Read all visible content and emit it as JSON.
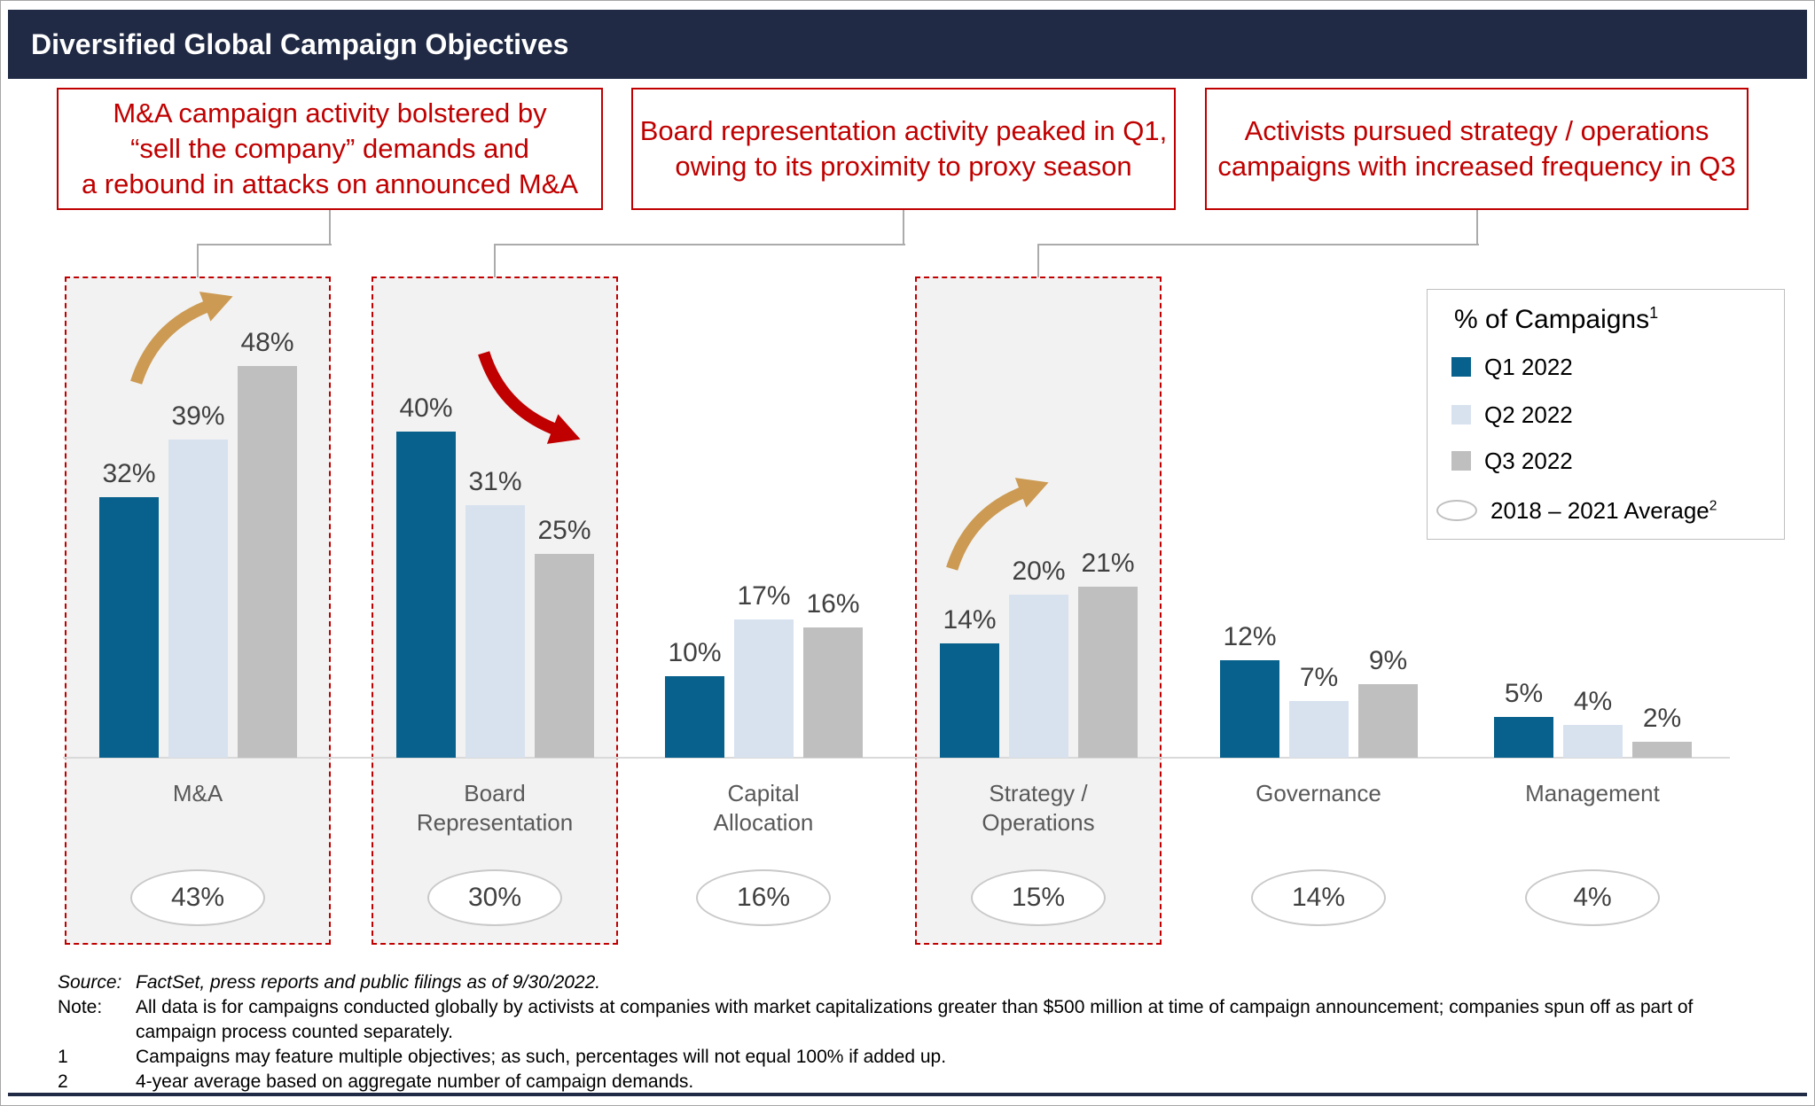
{
  "header": {
    "title": "Diversified Global Campaign Objectives"
  },
  "callouts": [
    {
      "text": "M&A campaign activity bolstered by\n“sell the company” demands and\na rebound in attacks on announced M&A"
    },
    {
      "text": "Board representation activity peaked in Q1,\nowing to its proximity to proxy season"
    },
    {
      "text": "Activists pursued strategy / operations\ncampaigns with increased frequency in Q3"
    }
  ],
  "legend": {
    "title": "% of Campaigns",
    "title_sup": "1",
    "items": [
      {
        "label": "Q1 2022",
        "color": "#08618c"
      },
      {
        "label": "Q2 2022",
        "color": "#d8e2ef"
      },
      {
        "label": "Q3 2022",
        "color": "#bfbfbf"
      }
    ],
    "average_item": {
      "label": "2018 – 2021 Average",
      "sup": "2"
    }
  },
  "chart_data": {
    "type": "bar",
    "title": "% of Campaigns",
    "categories": [
      "M&A",
      "Board Representation",
      "Capital Allocation",
      "Strategy / Operations",
      "Governance",
      "Management"
    ],
    "series": [
      {
        "name": "Q1 2022",
        "color": "#08618c",
        "values": [
          32,
          40,
          10,
          14,
          12,
          5
        ]
      },
      {
        "name": "Q2 2022",
        "color": "#d8e2ef",
        "values": [
          39,
          31,
          17,
          20,
          7,
          4
        ]
      },
      {
        "name": "Q3 2022",
        "color": "#bfbfbf",
        "values": [
          48,
          25,
          16,
          21,
          9,
          2
        ]
      }
    ],
    "averages_2018_2021": [
      43,
      30,
      16,
      15,
      14,
      4
    ],
    "value_suffix": "%",
    "ylim": [
      0,
      50
    ],
    "grid": false,
    "legend_position": "top-right",
    "highlighted_categories": [
      "M&A",
      "Board Representation",
      "Strategy / Operations"
    ],
    "trend_arrows": [
      {
        "category": "M&A",
        "direction": "up",
        "color": "#cc9a52"
      },
      {
        "category": "Board Representation",
        "direction": "down",
        "color": "#c00000"
      },
      {
        "category": "Strategy / Operations",
        "direction": "up",
        "color": "#cc9a52"
      }
    ]
  },
  "footnotes": [
    {
      "label": "Source:",
      "text": "FactSet, press reports and public filings as of 9/30/2022.",
      "italic": true
    },
    {
      "label": "Note:",
      "text": "All data is for campaigns conducted globally by activists at companies with market capitalizations greater than $500 million at time of campaign announcement; companies spun off as part of campaign process counted separately."
    },
    {
      "label": "1",
      "text": "Campaigns may feature multiple objectives; as such, percentages will not equal 100% if added up."
    },
    {
      "label": "2",
      "text": "4-year average based on aggregate number of campaign demands."
    }
  ],
  "colors": {
    "header_navy": "#202a44",
    "accent_red": "#c00000",
    "gold": "#cc9a52",
    "highlight_bg": "#f2f2f2",
    "axis_gray": "#d9d9d9",
    "connector_gray": "#ababab"
  }
}
